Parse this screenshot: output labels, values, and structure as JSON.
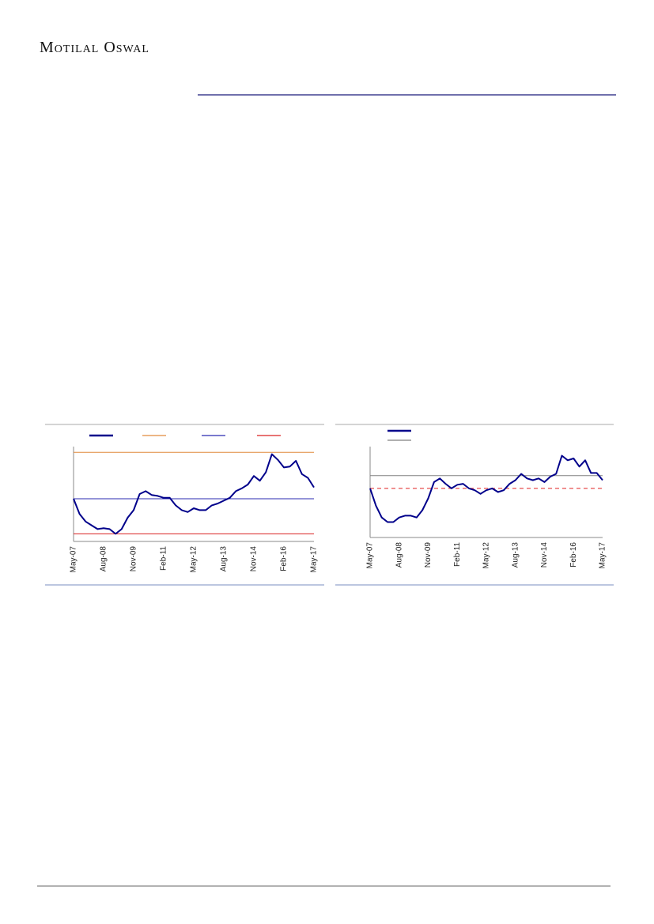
{
  "header": {
    "logo": "Motilal Oswal"
  },
  "chart_data": [
    {
      "type": "line",
      "categories": [
        "May-07",
        null,
        null,
        null,
        null,
        "Aug-08",
        null,
        null,
        null,
        null,
        "Nov-09",
        null,
        null,
        null,
        null,
        "Feb-11",
        null,
        null,
        null,
        null,
        "May-12",
        null,
        null,
        null,
        null,
        "Aug-13",
        null,
        null,
        null,
        null,
        "Nov-14",
        null,
        null,
        null,
        null,
        "Feb-16",
        null,
        null,
        null,
        null,
        "May-17"
      ],
      "ylim": [
        0,
        100
      ],
      "series": [
        {
          "color": "#00008b",
          "values": [
            45,
            29,
            21,
            17,
            13,
            14,
            13,
            8,
            13,
            25,
            33,
            50,
            53,
            49,
            48,
            46,
            46,
            38,
            33,
            31,
            35,
            33,
            33,
            38,
            40,
            43,
            46,
            53,
            56,
            60,
            69,
            64,
            73,
            92,
            86,
            78,
            79,
            85,
            71,
            67,
            57
          ]
        }
      ],
      "reference_lines": [
        {
          "value": 94,
          "color": "#e08a3c",
          "dash": false
        },
        {
          "value": 45,
          "color": "#2b2bb0",
          "dash": false
        },
        {
          "value": 8,
          "color": "#d92020",
          "dash": false
        }
      ]
    },
    {
      "type": "line",
      "categories": [
        "May-07",
        null,
        null,
        null,
        null,
        "Aug-08",
        null,
        null,
        null,
        null,
        "Nov-09",
        null,
        null,
        null,
        null,
        "Feb-11",
        null,
        null,
        null,
        null,
        "May-12",
        null,
        null,
        null,
        null,
        "Aug-13",
        null,
        null,
        null,
        null,
        "Nov-14",
        null,
        null,
        null,
        null,
        "Feb-16",
        null,
        null,
        null,
        null,
        "May-17"
      ],
      "ylim": [
        0,
        100
      ],
      "series": [
        {
          "color": "#00008b",
          "values": [
            54,
            35,
            22,
            17,
            17,
            22,
            24,
            24,
            22,
            30,
            43,
            61,
            65,
            59,
            54,
            58,
            59,
            54,
            52,
            48,
            52,
            54,
            50,
            52,
            59,
            63,
            70,
            65,
            63,
            65,
            61,
            67,
            70,
            90,
            85,
            87,
            78,
            85,
            71,
            71,
            63
          ]
        }
      ],
      "reference_lines": [
        {
          "value": 68,
          "color": "#808080",
          "dash": false
        },
        {
          "value": 54,
          "color": "#e02020",
          "dash": true
        }
      ]
    }
  ]
}
